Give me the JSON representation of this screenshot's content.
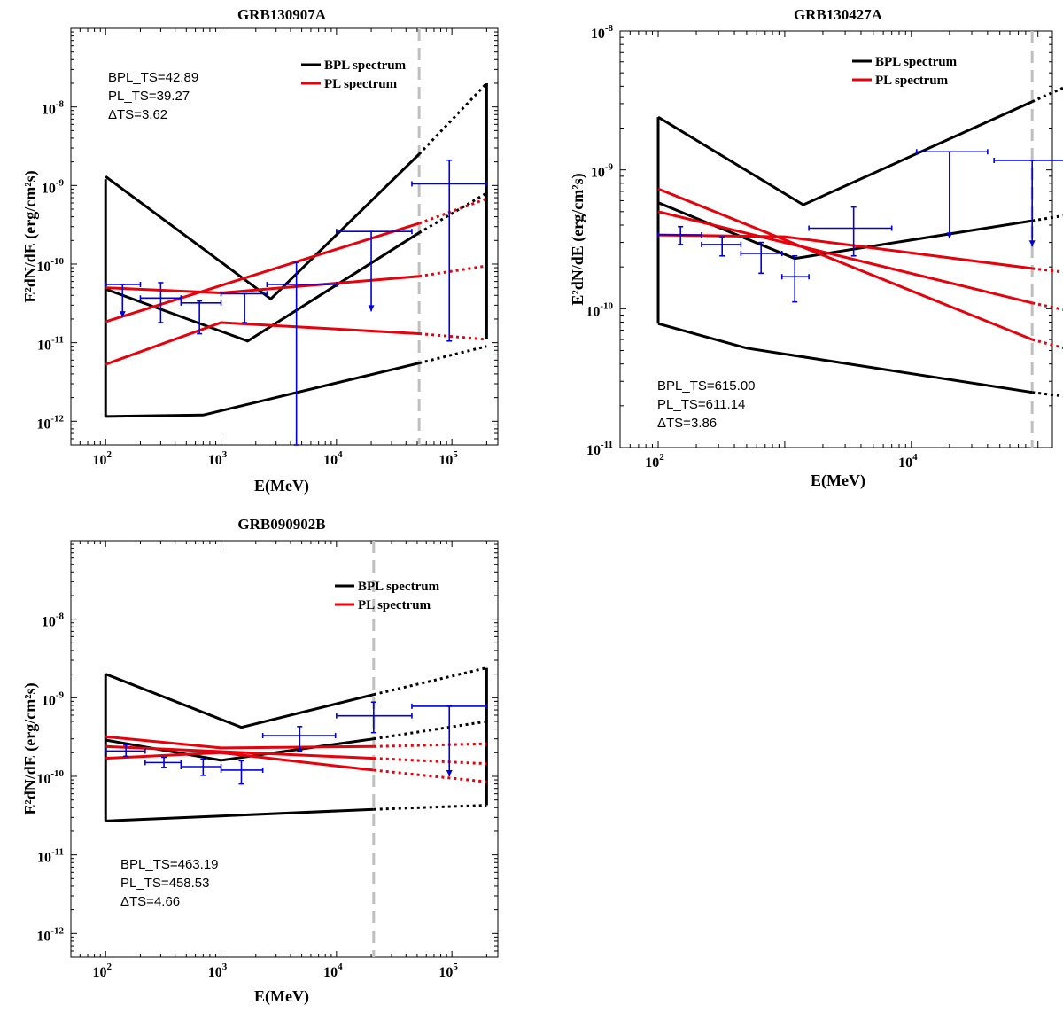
{
  "figure": {
    "xlabel": "E(MeV)",
    "ylabel": "E²dN/dE (erg/cm²s)",
    "colors": {
      "bpl": "#000000",
      "pl": "#e8000b",
      "data": "#0000dd",
      "threshold": "#bfbfbf"
    }
  },
  "chart_data": [
    {
      "type": "line",
      "title": "GRB130907A",
      "xlabel": "E(MeV)",
      "ylabel": "E²dN/dE (erg/cm²s)",
      "xscale": "log",
      "yscale": "log",
      "xlim": [
        50,
        250000
      ],
      "ylim": [
        5e-13,
        1e-07
      ],
      "xticks": [
        {
          "v": 100,
          "exp": "2"
        },
        {
          "v": 1000,
          "exp": "3"
        },
        {
          "v": 10000,
          "exp": "4"
        },
        {
          "v": 100000,
          "exp": "5"
        }
      ],
      "yticks": [
        {
          "v": 1e-12,
          "exp": "-12"
        },
        {
          "v": 1e-11,
          "exp": "-11"
        },
        {
          "v": 1e-10,
          "exp": "-10"
        },
        {
          "v": 1e-09,
          "exp": "-9"
        },
        {
          "v": 1e-08,
          "exp": "-8"
        }
      ],
      "annotation": [
        "BPL_TS=42.89",
        "PL_TS=39.27",
        "ΔTS=3.62"
      ],
      "annotation_position": "top-left",
      "legend": [
        "BPL spectrum",
        "PL spectrum"
      ],
      "legend_position": "top-right",
      "threshold_energy": 52000,
      "emax": 200000,
      "bpl_contour": {
        "upper": [
          [
            100,
            1.3e-09
          ],
          [
            2700,
            3.6e-11
          ],
          [
            52000,
            2.5e-09
          ],
          [
            200000,
            2e-08
          ]
        ],
        "best": [
          [
            100,
            4.8e-11
          ],
          [
            1700,
            1.05e-11
          ],
          [
            52000,
            2.5e-10
          ],
          [
            200000,
            8e-10
          ]
        ],
        "lower": [
          [
            100,
            1.15e-12
          ],
          [
            700,
            1.2e-12
          ],
          [
            52000,
            5.5e-12
          ],
          [
            200000,
            9e-12
          ]
        ],
        "left_edge": [
          1.15e-12,
          1.2e-09
        ],
        "right_edge": [
          1.1e-11,
          2e-08
        ]
      },
      "pl_lines": {
        "upper": [
          [
            100,
            1.85e-11
          ],
          [
            52000,
            3.3e-10
          ],
          [
            200000,
            6.8e-10
          ]
        ],
        "best": [
          [
            100,
            5e-11
          ],
          [
            1000,
            4.3e-11
          ],
          [
            52000,
            7e-11
          ],
          [
            200000,
            9.5e-11
          ]
        ],
        "lower": [
          [
            100,
            5.3e-12
          ],
          [
            1000,
            1.8e-11
          ],
          [
            52000,
            1.3e-11
          ],
          [
            200000,
            1.1e-11
          ]
        ]
      },
      "data_points": [
        {
          "x": 140,
          "xlo": 100,
          "xhi": 200,
          "y": 5.5e-11,
          "ylo": 2.1e-11,
          "yhi": 5.5e-11,
          "upper_limit": true
        },
        {
          "x": 300,
          "xlo": 200,
          "xhi": 450,
          "y": 3.7e-11,
          "ylo": 1.8e-11,
          "yhi": 5.8e-11,
          "upper_limit": false
        },
        {
          "x": 650,
          "xlo": 450,
          "xhi": 1000,
          "y": 3.2e-11,
          "ylo": 1.3e-11,
          "yhi": 3.4e-11,
          "upper_limit": false
        },
        {
          "x": 1600,
          "xlo": 1000,
          "xhi": 2500,
          "y": 4.2e-11,
          "ylo": 1.8e-11,
          "yhi": 4.2e-11,
          "upper_limit": false
        },
        {
          "x": 4500,
          "xlo": 2500,
          "xhi": 10000,
          "y": 5.5e-11,
          "ylo": 5e-13,
          "yhi": 1.05e-10,
          "upper_limit": false
        },
        {
          "x": 20000,
          "xlo": 10000,
          "xhi": 45000,
          "y": 2.6e-10,
          "ylo": 2.5e-11,
          "yhi": 2.6e-10,
          "upper_limit": true
        },
        {
          "x": 95000,
          "xlo": 45000,
          "xhi": 200000,
          "y": 1.05e-09,
          "ylo": 1.05e-11,
          "yhi": 2.1e-09,
          "upper_limit": false
        }
      ]
    },
    {
      "type": "line",
      "title": "GRB130427A",
      "xlabel": "E(MeV)",
      "ylabel": "E²dN/dE (erg/cm²s)",
      "xscale": "log",
      "yscale": "log",
      "xlim": [
        50,
        130000
      ],
      "ylim": [
        1e-11,
        1e-08
      ],
      "xticks": [
        {
          "v": 100,
          "exp": "2"
        },
        {
          "v": 10000,
          "exp": "4"
        }
      ],
      "yticks": [
        {
          "v": 1e-11,
          "exp": "-11"
        },
        {
          "v": 1e-10,
          "exp": "-10"
        },
        {
          "v": 1e-09,
          "exp": "-9"
        },
        {
          "v": 1e-08,
          "exp": "-8"
        }
      ],
      "annotation": [
        "BPL_TS=615.00",
        "PL_TS=611.14",
        "ΔTS=3.86"
      ],
      "annotation_position": "bottom-left",
      "legend": [
        "BPL spectrum",
        "PL spectrum"
      ],
      "legend_position": "top-right",
      "threshold_energy": 90000,
      "emax": 190000,
      "bpl_contour": {
        "upper": [
          [
            100,
            2.4e-09
          ],
          [
            1400,
            5.6e-10
          ],
          [
            90000,
            3.1e-09
          ],
          [
            190000,
            4.2e-09
          ]
        ],
        "best": [
          [
            100,
            5.8e-10
          ],
          [
            1200,
            2.3e-10
          ],
          [
            90000,
            4.3e-10
          ],
          [
            190000,
            4.8e-10
          ]
        ],
        "lower": [
          [
            100,
            7.8e-11
          ],
          [
            500,
            5.2e-11
          ],
          [
            90000,
            2.5e-11
          ],
          [
            190000,
            2.3e-11
          ]
        ],
        "left_edge": [
          7.8e-11,
          2.4e-09
        ],
        "right_edge": [
          2.3e-11,
          4.2e-09
        ]
      },
      "pl_lines": {
        "upper": [
          [
            100,
            7.3e-10
          ],
          [
            90000,
            6e-11
          ],
          [
            190000,
            5e-11
          ]
        ],
        "best": [
          [
            100,
            5e-10
          ],
          [
            90000,
            1.1e-10
          ],
          [
            190000,
            9.5e-11
          ]
        ],
        "lower": [
          [
            100,
            3.4e-10
          ],
          [
            1000,
            3.3e-10
          ],
          [
            90000,
            1.95e-10
          ],
          [
            190000,
            1.8e-10
          ]
        ]
      },
      "data_points": [
        {
          "x": 150,
          "xlo": 100,
          "xhi": 220,
          "y": 3.4e-10,
          "ylo": 2.9e-10,
          "yhi": 3.9e-10,
          "upper_limit": false
        },
        {
          "x": 320,
          "xlo": 220,
          "xhi": 450,
          "y": 2.9e-10,
          "ylo": 2.4e-10,
          "yhi": 3.3e-10,
          "upper_limit": false
        },
        {
          "x": 650,
          "xlo": 450,
          "xhi": 950,
          "y": 2.5e-10,
          "ylo": 1.8e-10,
          "yhi": 3e-10,
          "upper_limit": false
        },
        {
          "x": 1200,
          "xlo": 950,
          "xhi": 1550,
          "y": 1.7e-10,
          "ylo": 1.12e-10,
          "yhi": 2.4e-10,
          "upper_limit": false
        },
        {
          "x": 3500,
          "xlo": 1550,
          "xhi": 7000,
          "y": 3.8e-10,
          "ylo": 2.4e-10,
          "yhi": 5.4e-10,
          "upper_limit": false
        },
        {
          "x": 20000,
          "xlo": 11000,
          "xhi": 40000,
          "y": 1.35e-09,
          "ylo": 3.2e-10,
          "yhi": 1.35e-09,
          "upper_limit": true
        },
        {
          "x": 90000,
          "xlo": 45000,
          "xhi": 190000,
          "y": 1.17e-09,
          "ylo": 2.8e-10,
          "yhi": 1.17e-09,
          "upper_limit": true
        }
      ]
    },
    {
      "type": "line",
      "title": "GRB090902B",
      "xlabel": "E(MeV)",
      "ylabel": "E²dN/dE (erg/cm²s)",
      "xscale": "log",
      "yscale": "log",
      "xlim": [
        50,
        250000
      ],
      "ylim": [
        5e-13,
        1e-07
      ],
      "xticks": [
        {
          "v": 100,
          "exp": "2"
        },
        {
          "v": 1000,
          "exp": "3"
        },
        {
          "v": 10000,
          "exp": "4"
        },
        {
          "v": 100000,
          "exp": "5"
        }
      ],
      "yticks": [
        {
          "v": 1e-12,
          "exp": "-12"
        },
        {
          "v": 1e-11,
          "exp": "-11"
        },
        {
          "v": 1e-10,
          "exp": "-10"
        },
        {
          "v": 1e-09,
          "exp": "-9"
        },
        {
          "v": 1e-08,
          "exp": "-8"
        }
      ],
      "annotation": [
        "BPL_TS=463.19",
        "PL_TS=458.53",
        "ΔTS=4.66"
      ],
      "annotation_position": "bottom-left",
      "legend": [
        "BPL spectrum",
        "PL spectrum"
      ],
      "legend_position": "top-right",
      "threshold_energy": 21000,
      "emax": 200000,
      "bpl_contour": {
        "upper": [
          [
            100,
            2e-09
          ],
          [
            1500,
            4.2e-10
          ],
          [
            21000,
            1.1e-09
          ],
          [
            200000,
            2.4e-09
          ]
        ],
        "best": [
          [
            100,
            2.9e-10
          ],
          [
            1000,
            1.6e-10
          ],
          [
            21000,
            3e-10
          ],
          [
            200000,
            5e-10
          ]
        ],
        "lower": [
          [
            100,
            2.7e-11
          ],
          [
            21000,
            3.8e-11
          ],
          [
            200000,
            4.3e-11
          ]
        ],
        "left_edge": [
          2.7e-11,
          2e-09
        ],
        "right_edge": [
          4.3e-11,
          2.4e-09
        ]
      },
      "pl_lines": {
        "upper": [
          [
            100,
            3.2e-10
          ],
          [
            1000,
            2.3e-10
          ],
          [
            21000,
            2.4e-10
          ],
          [
            200000,
            2.6e-10
          ]
        ],
        "best": [
          [
            100,
            2.4e-10
          ],
          [
            21000,
            1.7e-10
          ],
          [
            200000,
            1.45e-10
          ]
        ],
        "lower": [
          [
            100,
            1.7e-10
          ],
          [
            1000,
            2e-10
          ],
          [
            21000,
            1.2e-10
          ],
          [
            200000,
            8.5e-11
          ]
        ]
      },
      "data_points": [
        {
          "x": 150,
          "xlo": 100,
          "xhi": 220,
          "y": 2.1e-10,
          "ylo": 1.8e-10,
          "yhi": 2.5e-10,
          "upper_limit": false
        },
        {
          "x": 320,
          "xlo": 220,
          "xhi": 450,
          "y": 1.5e-10,
          "ylo": 1.3e-10,
          "yhi": 1.75e-10,
          "upper_limit": false
        },
        {
          "x": 700,
          "xlo": 450,
          "xhi": 1000,
          "y": 1.33e-10,
          "ylo": 1.03e-10,
          "yhi": 1.65e-10,
          "upper_limit": false
        },
        {
          "x": 1500,
          "xlo": 1000,
          "xhi": 2300,
          "y": 1.2e-10,
          "ylo": 8e-11,
          "yhi": 1.58e-10,
          "upper_limit": false
        },
        {
          "x": 4800,
          "xlo": 2300,
          "xhi": 9800,
          "y": 3.3e-10,
          "ylo": 2.1e-10,
          "yhi": 4.3e-10,
          "upper_limit": false
        },
        {
          "x": 21000,
          "xlo": 10000,
          "xhi": 45000,
          "y": 5.9e-10,
          "ylo": 3.6e-10,
          "yhi": 8.8e-10,
          "upper_limit": false
        },
        {
          "x": 95000,
          "xlo": 45000,
          "xhi": 200000,
          "y": 7.8e-10,
          "ylo": 1e-10,
          "yhi": 7.8e-10,
          "upper_limit": true
        }
      ]
    }
  ]
}
